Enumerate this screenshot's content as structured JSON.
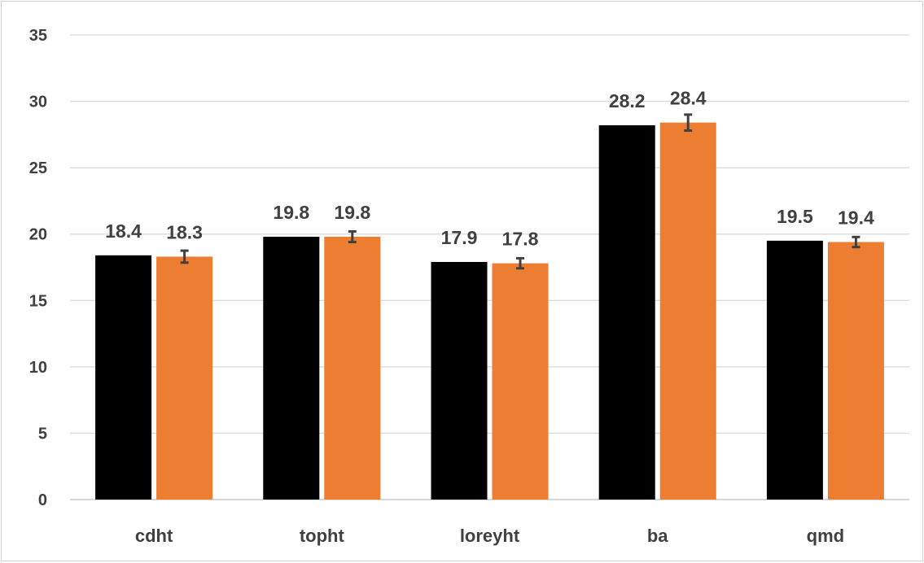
{
  "chart_data": {
    "type": "bar",
    "title": "",
    "xlabel": "",
    "ylabel": "",
    "categories": [
      "cdht",
      "topht",
      "loreyht",
      "ba",
      "qmd"
    ],
    "ylim": [
      0,
      35
    ],
    "yticks": [
      0,
      5,
      10,
      15,
      20,
      25,
      30,
      35
    ],
    "ytick_labels": [
      "0",
      "5",
      "10",
      "15",
      "20",
      "25",
      "30",
      "35"
    ],
    "grid": true,
    "legend": "none",
    "series": [
      {
        "values": [
          18.4,
          19.8,
          17.9,
          28.2,
          19.5
        ],
        "labels": [
          "18.4",
          "19.8",
          "17.9",
          "28.2",
          "19.5"
        ],
        "color": "#000000",
        "error": null
      },
      {
        "values": [
          18.3,
          19.8,
          17.8,
          28.4,
          19.4
        ],
        "labels": [
          "18.3",
          "19.8",
          "17.8",
          "28.4",
          "19.4"
        ],
        "color": "#ed7d31",
        "error": [
          0.45,
          0.4,
          0.38,
          0.6,
          0.38
        ]
      }
    ]
  }
}
